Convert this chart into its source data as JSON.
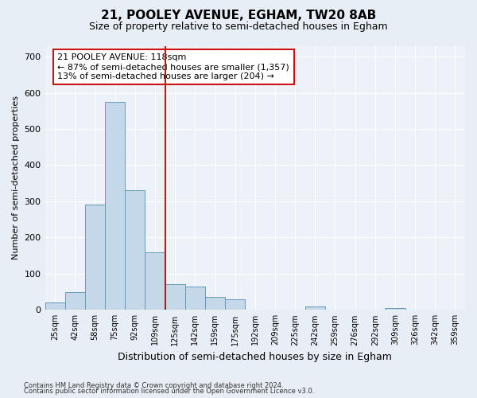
{
  "title1": "21, POOLEY AVENUE, EGHAM, TW20 8AB",
  "title2": "Size of property relative to semi-detached houses in Egham",
  "xlabel": "Distribution of semi-detached houses by size in Egham",
  "ylabel": "Number of semi-detached properties",
  "categories": [
    "25sqm",
    "42sqm",
    "58sqm",
    "75sqm",
    "92sqm",
    "109sqm",
    "125sqm",
    "142sqm",
    "159sqm",
    "175sqm",
    "192sqm",
    "209sqm",
    "225sqm",
    "242sqm",
    "259sqm",
    "276sqm",
    "292sqm",
    "309sqm",
    "326sqm",
    "342sqm",
    "359sqm"
  ],
  "values": [
    20,
    50,
    290,
    575,
    330,
    160,
    70,
    65,
    35,
    30,
    0,
    0,
    0,
    10,
    0,
    0,
    0,
    5,
    0,
    0,
    0
  ],
  "bar_color": "#c5d8ea",
  "bar_edge_color": "#6699bb",
  "vline_x": 5.5,
  "vline_color": "#cc1111",
  "annotation_text": "21 POOLEY AVENUE: 118sqm\n← 87% of semi-detached houses are smaller (1,357)\n13% of semi-detached houses are larger (204) →",
  "annotation_box_color": "#ffffff",
  "annotation_box_edge_color": "#cc1111",
  "ylim": [
    0,
    730
  ],
  "yticks": [
    0,
    100,
    200,
    300,
    400,
    500,
    600,
    700
  ],
  "footnote1": "Contains HM Land Registry data © Crown copyright and database right 2024.",
  "footnote2": "Contains public sector information licensed under the Open Government Licence v3.0.",
  "background_color": "#e8eef5",
  "plot_background_color": "#edf2f8"
}
